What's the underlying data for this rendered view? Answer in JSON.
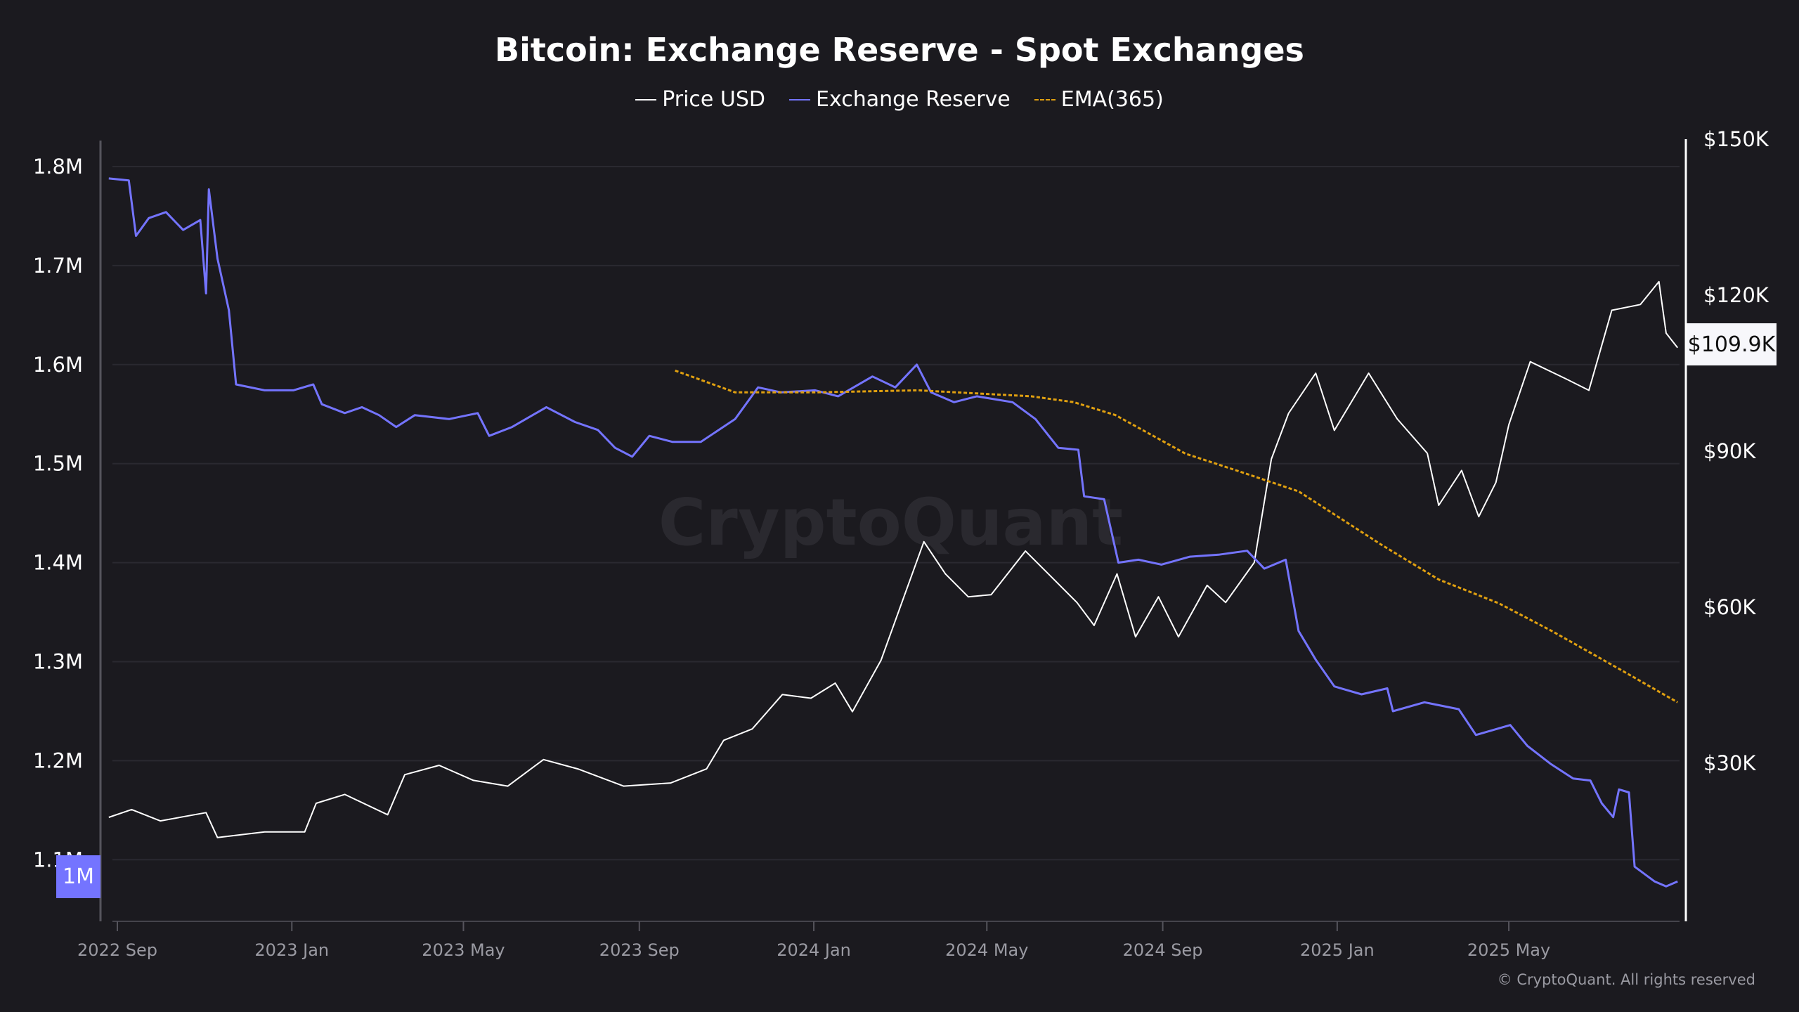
{
  "chart_data": {
    "type": "line",
    "title": "Bitcoin: Exchange Reserve - Spot Exchanges",
    "watermark": "CryptoQuant",
    "copyright": "© CryptoQuant. All rights reserved",
    "legend_position": "top",
    "grid": true,
    "x_ticks": [
      "2022 Sep",
      "2023 Jan",
      "2023 May",
      "2023 Sep",
      "2024 Jan",
      "2024 May",
      "2024 Sep",
      "2025 Jan",
      "2025 May"
    ],
    "x_tick_dates": [
      "2022-09-01",
      "2023-01-01",
      "2023-05-01",
      "2023-09-01",
      "2024-01-01",
      "2024-05-01",
      "2024-09-01",
      "2025-01-01",
      "2025-05-01"
    ],
    "y_left_ticks": [
      "1.8M",
      "1.7M",
      "1.6M",
      "1.5M",
      "1.4M",
      "1.3M",
      "1.2M",
      "1.1M"
    ],
    "y_left_tick_values": [
      1800000,
      1700000,
      1600000,
      1500000,
      1400000,
      1300000,
      1200000,
      1100000
    ],
    "y_right_ticks": [
      "$150K",
      "$120K",
      "$90K",
      "$60K",
      "$30K"
    ],
    "y_right_tick_values": [
      150000,
      120000,
      90000,
      60000,
      30000
    ],
    "left_badge": "1M",
    "last_price_label": "$109.9K",
    "colors": {
      "price": "#ffffff",
      "reserve": "#7474ff",
      "ema": "#e0a010",
      "background": "#1b1a1f"
    },
    "series": [
      {
        "name": "Price USD",
        "axis": "right",
        "style": "solid",
        "points": [
          [
            "2022-08-26",
            19600
          ],
          [
            "2022-09-11",
            21100
          ],
          [
            "2022-10-01",
            18900
          ],
          [
            "2022-11-02",
            20500
          ],
          [
            "2022-11-10",
            15700
          ],
          [
            "2022-12-13",
            16800
          ],
          [
            "2023-01-10",
            16800
          ],
          [
            "2023-01-18",
            22300
          ],
          [
            "2023-02-07",
            24000
          ],
          [
            "2023-03-09",
            20100
          ],
          [
            "2023-03-21",
            27800
          ],
          [
            "2023-04-14",
            29600
          ],
          [
            "2023-05-08",
            26700
          ],
          [
            "2023-06-01",
            25600
          ],
          [
            "2023-06-26",
            30700
          ],
          [
            "2023-07-20",
            28900
          ],
          [
            "2023-08-21",
            25600
          ],
          [
            "2023-09-23",
            26200
          ],
          [
            "2023-10-18",
            28900
          ],
          [
            "2023-10-30",
            34400
          ],
          [
            "2023-11-19",
            36600
          ],
          [
            "2023-12-10",
            43200
          ],
          [
            "2023-12-30",
            42500
          ],
          [
            "2024-01-16",
            45400
          ],
          [
            "2024-01-28",
            39900
          ],
          [
            "2024-02-17",
            49800
          ],
          [
            "2024-03-04",
            62000
          ],
          [
            "2024-03-18",
            72600
          ],
          [
            "2024-04-02",
            66400
          ],
          [
            "2024-04-18",
            62000
          ],
          [
            "2024-05-04",
            62400
          ],
          [
            "2024-05-28",
            70800
          ],
          [
            "2024-06-13",
            66400
          ],
          [
            "2024-07-03",
            60900
          ],
          [
            "2024-07-15",
            56500
          ],
          [
            "2024-07-31",
            66400
          ],
          [
            "2024-08-13",
            54300
          ],
          [
            "2024-08-29",
            62000
          ],
          [
            "2024-09-12",
            54300
          ],
          [
            "2024-10-02",
            64200
          ],
          [
            "2024-10-15",
            60900
          ],
          [
            "2024-11-04",
            68600
          ],
          [
            "2024-11-16",
            88500
          ],
          [
            "2024-11-28",
            97300
          ],
          [
            "2024-12-17",
            105000
          ],
          [
            "2024-12-30",
            94000
          ],
          [
            "2025-01-23",
            105000
          ],
          [
            "2025-02-12",
            96200
          ],
          [
            "2025-03-05",
            89600
          ],
          [
            "2025-03-13",
            79600
          ],
          [
            "2025-03-29",
            86300
          ],
          [
            "2025-04-10",
            77400
          ],
          [
            "2025-04-22",
            84000
          ],
          [
            "2025-05-01",
            95100
          ],
          [
            "2025-05-16",
            107200
          ],
          [
            "2025-06-10",
            103900
          ],
          [
            "2025-06-26",
            101700
          ],
          [
            "2025-07-12",
            117100
          ],
          [
            "2025-08-01",
            118200
          ],
          [
            "2025-08-14",
            122600
          ],
          [
            "2025-08-19",
            112700
          ],
          [
            "2025-08-27",
            109900
          ]
        ]
      },
      {
        "name": "Exchange Reserve",
        "axis": "left",
        "style": "solid",
        "points": [
          [
            "2022-08-26",
            1788000
          ],
          [
            "2022-09-09",
            1786000
          ],
          [
            "2022-09-14",
            1730000
          ],
          [
            "2022-09-23",
            1748000
          ],
          [
            "2022-10-05",
            1754000
          ],
          [
            "2022-10-17",
            1736000
          ],
          [
            "2022-10-29",
            1746000
          ],
          [
            "2022-11-02",
            1672000
          ],
          [
            "2022-11-04",
            1777000
          ],
          [
            "2022-11-10",
            1707000
          ],
          [
            "2022-11-18",
            1655000
          ],
          [
            "2022-11-23",
            1580000
          ],
          [
            "2022-12-13",
            1574000
          ],
          [
            "2023-01-02",
            1574000
          ],
          [
            "2023-01-16",
            1580000
          ],
          [
            "2023-01-22",
            1560000
          ],
          [
            "2023-02-07",
            1551000
          ],
          [
            "2023-02-19",
            1557000
          ],
          [
            "2023-03-03",
            1549000
          ],
          [
            "2023-03-15",
            1537000
          ],
          [
            "2023-03-28",
            1549000
          ],
          [
            "2023-04-21",
            1545000
          ],
          [
            "2023-05-11",
            1551000
          ],
          [
            "2023-05-19",
            1528000
          ],
          [
            "2023-06-04",
            1537000
          ],
          [
            "2023-06-28",
            1557000
          ],
          [
            "2023-07-18",
            1542000
          ],
          [
            "2023-08-03",
            1534000
          ],
          [
            "2023-08-15",
            1516000
          ],
          [
            "2023-08-27",
            1507000
          ],
          [
            "2023-09-08",
            1528000
          ],
          [
            "2023-09-24",
            1522000
          ],
          [
            "2023-10-14",
            1522000
          ],
          [
            "2023-11-07",
            1545000
          ],
          [
            "2023-11-23",
            1577000
          ],
          [
            "2023-12-09",
            1572000
          ],
          [
            "2024-01-02",
            1574000
          ],
          [
            "2024-01-18",
            1568000
          ],
          [
            "2024-02-11",
            1588000
          ],
          [
            "2024-02-27",
            1577000
          ],
          [
            "2024-03-13",
            1600000
          ],
          [
            "2024-03-23",
            1572000
          ],
          [
            "2024-04-08",
            1562000
          ],
          [
            "2024-04-24",
            1568000
          ],
          [
            "2024-05-19",
            1562000
          ],
          [
            "2024-06-04",
            1545000
          ],
          [
            "2024-06-20",
            1516000
          ],
          [
            "2024-07-04",
            1514000
          ],
          [
            "2024-07-08",
            1467000
          ],
          [
            "2024-07-22",
            1464000
          ],
          [
            "2024-08-01",
            1400000
          ],
          [
            "2024-08-15",
            1403000
          ],
          [
            "2024-08-31",
            1398000
          ],
          [
            "2024-09-20",
            1406000
          ],
          [
            "2024-10-10",
            1408000
          ],
          [
            "2024-10-30",
            1412000
          ],
          [
            "2024-11-11",
            1394000
          ],
          [
            "2024-11-26",
            1403000
          ],
          [
            "2024-12-05",
            1331000
          ],
          [
            "2024-12-17",
            1302000
          ],
          [
            "2024-12-30",
            1275000
          ],
          [
            "2025-01-18",
            1267000
          ],
          [
            "2025-02-05",
            1273000
          ],
          [
            "2025-02-09",
            1250000
          ],
          [
            "2025-03-03",
            1259000
          ],
          [
            "2025-03-27",
            1252000
          ],
          [
            "2025-04-08",
            1226000
          ],
          [
            "2025-05-02",
            1236000
          ],
          [
            "2025-05-14",
            1215000
          ],
          [
            "2025-05-30",
            1197000
          ],
          [
            "2025-06-15",
            1182000
          ],
          [
            "2025-06-27",
            1180000
          ],
          [
            "2025-07-05",
            1157000
          ],
          [
            "2025-07-13",
            1143000
          ],
          [
            "2025-07-17",
            1171000
          ],
          [
            "2025-07-24",
            1168000
          ],
          [
            "2025-07-28",
            1093000
          ],
          [
            "2025-08-11",
            1078000
          ],
          [
            "2025-08-19",
            1073000
          ],
          [
            "2025-08-27",
            1078000
          ]
        ]
      },
      {
        "name": "EMA(365)",
        "axis": "left",
        "style": "dashed",
        "points": [
          [
            "2023-09-26",
            1594000
          ],
          [
            "2023-11-07",
            1572000
          ],
          [
            "2024-01-02",
            1572000
          ],
          [
            "2024-03-14",
            1574000
          ],
          [
            "2024-06-01",
            1568000
          ],
          [
            "2024-07-01",
            1562000
          ],
          [
            "2024-07-30",
            1549000
          ],
          [
            "2024-09-17",
            1510000
          ],
          [
            "2024-10-27",
            1491000
          ],
          [
            "2024-12-05",
            1472000
          ],
          [
            "2025-02-01",
            1418000
          ],
          [
            "2025-03-13",
            1383000
          ],
          [
            "2025-04-24",
            1359000
          ],
          [
            "2025-05-31",
            1331000
          ],
          [
            "2025-07-18",
            1292000
          ],
          [
            "2025-08-27",
            1259000
          ]
        ]
      }
    ]
  }
}
